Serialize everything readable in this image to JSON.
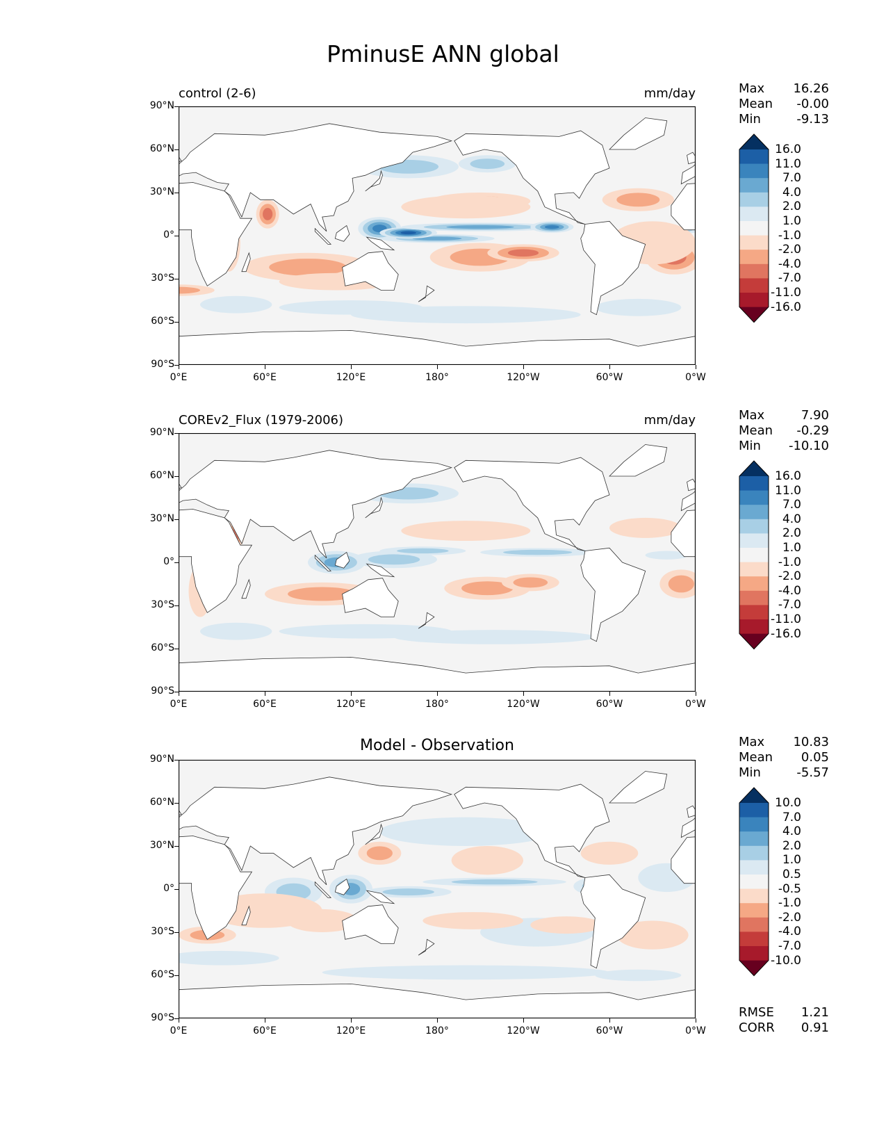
{
  "title": "PminusE ANN global",
  "x_ticks": [
    "0°E",
    "60°E",
    "120°E",
    "180°",
    "120°W",
    "60°W",
    "0°W"
  ],
  "y_ticks": [
    "90°N",
    "60°N",
    "30°N",
    "0°",
    "30°S",
    "60°S",
    "90°S"
  ],
  "colors": {
    "levels_neg": [
      "#f4f4f4",
      "#fbdbc9",
      "#f5a885",
      "#e07560",
      "#c43c3a",
      "#a71a2b",
      "#67001f"
    ],
    "levels_pos": [
      "#f4f4f4",
      "#dbe9f2",
      "#a8cfe5",
      "#6aa9d1",
      "#3a84bd",
      "#1c5fa6",
      "#053061"
    ],
    "coast": "#333333",
    "ocean_bg": "#f4f4f4"
  },
  "panels": [
    {
      "left_title": "control (2-6)",
      "right_title": "mm/day",
      "center_title": "",
      "stats": [
        {
          "label": "Max",
          "value": "16.26"
        },
        {
          "label": "Mean",
          "value": "-0.00"
        },
        {
          "label": "Min",
          "value": "-9.13"
        }
      ],
      "colorbar_labels": [
        "16.0",
        "11.0",
        "7.0",
        "4.0",
        "2.0",
        "1.0",
        "-1.0",
        "-2.0",
        "-4.0",
        "-7.0",
        "-11.0",
        "-16.0"
      ],
      "extra_stats": []
    },
    {
      "left_title": "COREv2_Flux (1979-2006)",
      "right_title": "mm/day",
      "center_title": "",
      "stats": [
        {
          "label": "Max",
          "value": "7.90"
        },
        {
          "label": "Mean",
          "value": "-0.29"
        },
        {
          "label": "Min",
          "value": "-10.10"
        }
      ],
      "colorbar_labels": [
        "16.0",
        "11.0",
        "7.0",
        "4.0",
        "2.0",
        "1.0",
        "-1.0",
        "-2.0",
        "-4.0",
        "-7.0",
        "-11.0",
        "-16.0"
      ],
      "extra_stats": []
    },
    {
      "left_title": "",
      "right_title": "",
      "center_title": "Model - Observation",
      "stats": [
        {
          "label": "Max",
          "value": "10.83"
        },
        {
          "label": "Mean",
          "value": "0.05"
        },
        {
          "label": "Min",
          "value": "-5.57"
        }
      ],
      "colorbar_labels": [
        "10.0",
        "7.0",
        "4.0",
        "2.0",
        "1.0",
        "0.5",
        "-0.5",
        "-1.0",
        "-2.0",
        "-4.0",
        "-7.0",
        "-10.0"
      ],
      "extra_stats": [
        {
          "label": "RMSE",
          "value": "1.21"
        },
        {
          "label": "CORR",
          "value": "0.91"
        }
      ]
    }
  ]
}
